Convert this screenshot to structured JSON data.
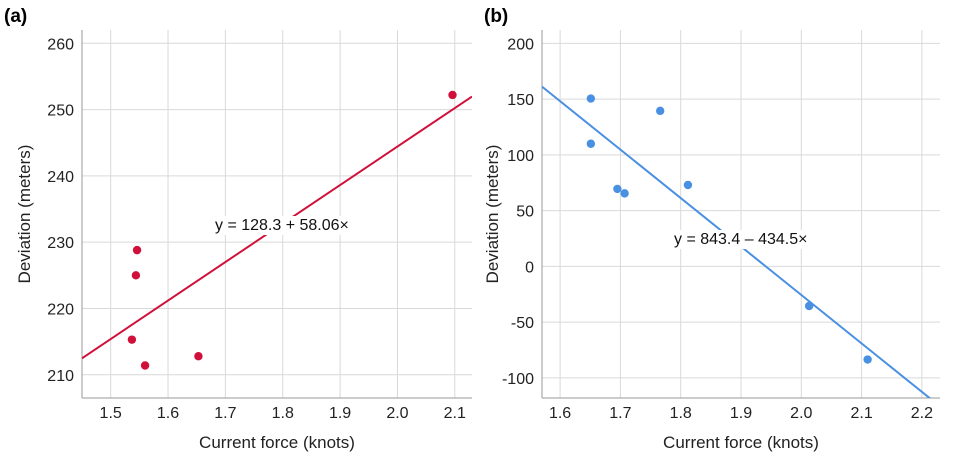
{
  "chart_data": [
    {
      "type": "scatter",
      "panel_label": "(a)",
      "xlabel": "Current force (knots)",
      "ylabel": "Deviation (meters)",
      "xlim": [
        1.45,
        2.13
      ],
      "ylim": [
        206.5,
        262
      ],
      "xticks": [
        1.5,
        1.6,
        1.7,
        1.8,
        1.9,
        2.0,
        2.1
      ],
      "xtick_labels": [
        "1.5",
        "1.6",
        "1.7",
        "1.8",
        "1.9",
        "2.0",
        "2.1"
      ],
      "yticks": [
        210,
        220,
        230,
        240,
        250,
        260
      ],
      "ytick_labels": [
        "210",
        "220",
        "230",
        "240",
        "250",
        "260"
      ],
      "grid": true,
      "color": "#d0103a",
      "points": [
        {
          "x": 1.537,
          "y": 215.3
        },
        {
          "x": 1.544,
          "y": 225.0
        },
        {
          "x": 1.546,
          "y": 228.8
        },
        {
          "x": 1.56,
          "y": 211.4
        },
        {
          "x": 1.653,
          "y": 212.8
        },
        {
          "x": 2.096,
          "y": 252.2
        }
      ],
      "fit": {
        "intercept": 128.3,
        "slope": 58.06
      },
      "annotation": "y = 128.3 + 58.06×"
    },
    {
      "type": "scatter",
      "panel_label": "(b)",
      "xlabel": "Current force (knots)",
      "ylabel": "Deviation (meters)",
      "xlim": [
        1.57,
        2.23
      ],
      "ylim": [
        -118,
        212
      ],
      "xticks": [
        1.6,
        1.7,
        1.8,
        1.9,
        2.0,
        2.1,
        2.2
      ],
      "xtick_labels": [
        "1.6",
        "1.7",
        "1.8",
        "1.9",
        "2.0",
        "2.1",
        "2.2"
      ],
      "yticks": [
        -100,
        -50,
        0,
        50,
        100,
        150,
        200
      ],
      "ytick_labels": [
        "-100",
        "-50",
        "0",
        "50",
        "100",
        "150",
        "200"
      ],
      "grid": true,
      "color": "#4a90e2",
      "points": [
        {
          "x": 1.651,
          "y": 150.5
        },
        {
          "x": 1.651,
          "y": 110.0
        },
        {
          "x": 1.695,
          "y": 69.5
        },
        {
          "x": 1.707,
          "y": 65.5
        },
        {
          "x": 1.766,
          "y": 139.5
        },
        {
          "x": 1.812,
          "y": 73.0
        },
        {
          "x": 2.013,
          "y": -35.5
        },
        {
          "x": 2.11,
          "y": -83.5
        }
      ],
      "fit": {
        "intercept": 843.4,
        "slope": -434.5
      },
      "annotation": "y = 843.4 – 434.5×"
    }
  ]
}
